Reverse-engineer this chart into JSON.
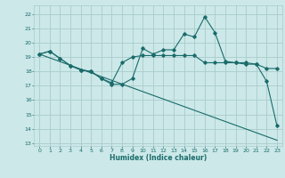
{
  "xlabel": "Humidex (Indice chaleur)",
  "background_color": "#cce8e8",
  "grid_color": "#aacccc",
  "line_color": "#1a6b6b",
  "xlim": [
    -0.5,
    23.5
  ],
  "ylim": [
    12.8,
    22.6
  ],
  "yticks": [
    13,
    14,
    15,
    16,
    17,
    18,
    19,
    20,
    21,
    22
  ],
  "xticks": [
    0,
    1,
    2,
    3,
    4,
    5,
    6,
    7,
    8,
    9,
    10,
    11,
    12,
    13,
    14,
    15,
    16,
    17,
    18,
    19,
    20,
    21,
    22,
    23
  ],
  "series1": {
    "x": [
      0,
      1,
      2,
      3,
      4,
      5,
      6,
      7,
      8,
      9,
      10,
      11,
      12,
      13,
      14,
      15,
      16,
      17,
      18,
      19,
      20,
      21,
      22,
      23
    ],
    "y": [
      19.2,
      19.4,
      18.9,
      18.4,
      18.1,
      18.0,
      17.5,
      17.1,
      17.1,
      17.5,
      19.6,
      19.2,
      19.5,
      19.5,
      20.6,
      20.4,
      21.8,
      20.7,
      18.7,
      18.6,
      18.6,
      18.5,
      18.2,
      18.2
    ]
  },
  "series2": {
    "x": [
      0,
      1,
      2,
      3,
      4,
      5,
      6,
      7,
      8,
      9,
      10,
      11,
      12,
      13,
      14,
      15,
      16,
      17,
      18,
      19,
      20,
      21,
      22,
      23
    ],
    "y": [
      19.2,
      19.4,
      18.9,
      18.4,
      18.1,
      18.0,
      17.5,
      17.2,
      18.6,
      19.0,
      19.1,
      19.1,
      19.1,
      19.1,
      19.1,
      19.1,
      18.6,
      18.6,
      18.6,
      18.6,
      18.5,
      18.5,
      17.3,
      14.2
    ]
  },
  "series3": {
    "x": [
      0,
      23
    ],
    "y": [
      19.2,
      13.2
    ]
  }
}
